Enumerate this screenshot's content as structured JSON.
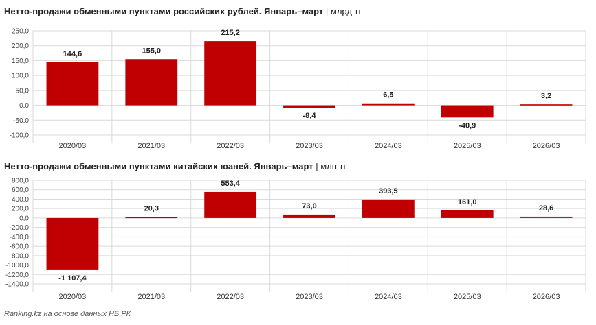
{
  "chart_data": [
    {
      "type": "bar",
      "title": "Нетто-продажи обменными пунктами российских рублей. Январь–март",
      "unit": "млрд тг",
      "categories": [
        "2020/03",
        "2021/03",
        "2022/03",
        "2023/03",
        "2024/03",
        "2025/03",
        "2026/03"
      ],
      "values": [
        144.6,
        155.0,
        215.2,
        -8.4,
        6.5,
        -40.9,
        3.2
      ],
      "value_labels": [
        "144,6",
        "155,0",
        "215,2",
        "-8,4",
        "6,5",
        "-40,9",
        "3,2"
      ],
      "ylim": [
        -100,
        250
      ],
      "yticks": [
        250,
        200,
        150,
        100,
        50,
        0,
        -50,
        -100
      ],
      "ytick_labels": [
        "250,0",
        "200,0",
        "150,0",
        "100,0",
        "50,0",
        "0,0",
        "-50,0",
        "-100,0"
      ],
      "grid": true,
      "bar_color": "#c00000"
    },
    {
      "type": "bar",
      "title": "Нетто-продажи обменными пунктами китайских юаней. Январь–март",
      "unit": "млн тг",
      "categories": [
        "2020/03",
        "2021/03",
        "2022/03",
        "2023/03",
        "2024/03",
        "2025/03",
        "2026/03"
      ],
      "values": [
        -1107.4,
        20.3,
        553.4,
        73.0,
        393.5,
        161.0,
        28.6
      ],
      "value_labels": [
        "-1 107,4",
        "20,3",
        "553,4",
        "73,0",
        "393,5",
        "161,0",
        "28,6"
      ],
      "ylim": [
        -1400,
        800
      ],
      "yticks": [
        800,
        600,
        400,
        200,
        0,
        -200,
        -400,
        -600,
        -800,
        -1000,
        -1200,
        -1400
      ],
      "ytick_labels": [
        "800,0",
        "600,0",
        "400,0",
        "200,0",
        "0,0",
        "-200,0",
        "-400,0",
        "-600,0",
        "-800,0",
        "-1000,0",
        "-1200,0",
        "-1400,0"
      ],
      "grid": true,
      "bar_color": "#c00000"
    }
  ],
  "titles": [
    {
      "main": "Нетто-продажи обменными пунктами российских рублей. Январь–март",
      "sep": " | ",
      "unit": "млрд тг"
    },
    {
      "main": "Нетто-продажи обменными пунктами китайских юаней. Январь–март",
      "sep": " | ",
      "unit": "млн тг"
    }
  ],
  "footer": "Ranking.kz на основе данных НБ РК"
}
